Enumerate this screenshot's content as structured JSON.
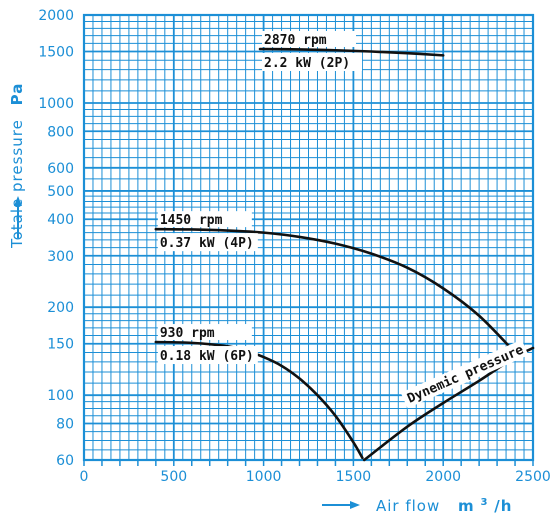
{
  "chart_data": {
    "type": "line",
    "title": "",
    "xlabel": "Air flow",
    "xlabel_unit_base": "m",
    "xlabel_unit_sup": "3",
    "xlabel_unit_tail": "/h",
    "ylabel": "Totale pressure",
    "ylabel_unit": "Pa",
    "y_scale": "log",
    "xlim": [
      0,
      2500
    ],
    "ylim": [
      60,
      2000
    ],
    "grid": true,
    "x_ticks": [
      "0",
      "500",
      "1000",
      "1500",
      "2000",
      "2500"
    ],
    "y_ticks": [
      "60",
      "80",
      "100",
      "150",
      "200",
      "300",
      "400",
      "500",
      "600",
      "800",
      "1000",
      "1500",
      "2000"
    ],
    "series": [
      {
        "label_rpm": "2870 rpm",
        "label_power": "2.2 kW (2P)",
        "x": [
          980,
          1200,
          1400,
          1600,
          1800,
          2000
        ],
        "y": [
          1530,
          1525,
          1515,
          1500,
          1480,
          1455
        ]
      },
      {
        "label_rpm": "1450 rpm",
        "label_power": "0.37 kW (4P)",
        "x": [
          400,
          600,
          800,
          1000,
          1200,
          1400,
          1600,
          1800,
          2000,
          2200,
          2400
        ],
        "y": [
          370,
          369,
          366,
          360,
          348,
          330,
          305,
          273,
          232,
          187,
          140
        ]
      },
      {
        "label_rpm": "930 rpm",
        "label_power": "0.18 kW (6P)",
        "x": [
          400,
          600,
          800,
          900,
          1000,
          1100,
          1200,
          1300,
          1400,
          1500,
          1550
        ],
        "y": [
          152,
          151,
          147,
          142,
          135,
          126,
          114,
          100,
          85,
          69,
          61
        ]
      },
      {
        "name": "Dynemic pressure",
        "x": [
          1560,
          1800,
          2000,
          2200,
          2400,
          2500
        ],
        "y": [
          60,
          78,
          94,
          112,
          135,
          145
        ]
      }
    ]
  },
  "colors": {
    "grid": "#1c8fd6",
    "curve": "#111111",
    "background": "#ffffff"
  }
}
